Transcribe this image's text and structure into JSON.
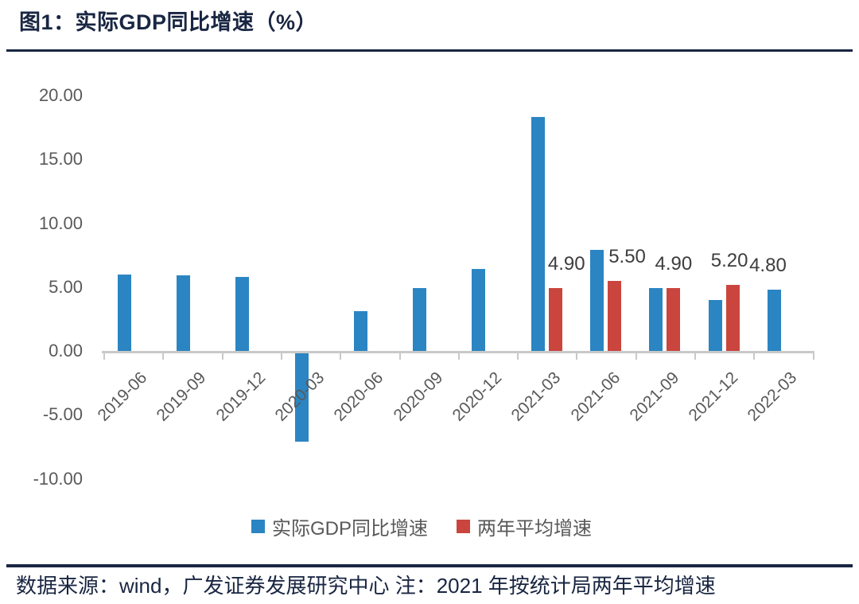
{
  "title": "图1：实际GDP同比增速（%）",
  "chart_data": {
    "type": "bar",
    "categories": [
      "2019-06",
      "2019-09",
      "2019-12",
      "2020-03",
      "2020-06",
      "2020-09",
      "2020-12",
      "2021-03",
      "2021-06",
      "2021-09",
      "2021-12",
      "2022-03"
    ],
    "series": [
      {
        "id": "gdp",
        "name": "实际GDP同比增速",
        "color": "#2b85c2",
        "values": [
          6.0,
          5.9,
          5.8,
          -6.9,
          3.1,
          4.9,
          6.4,
          18.3,
          7.9,
          4.9,
          4.0,
          4.8
        ]
      },
      {
        "id": "avg",
        "name": "两年平均增速",
        "color": "#ca453e",
        "values": [
          null,
          null,
          null,
          null,
          null,
          null,
          null,
          4.9,
          5.5,
          4.9,
          5.2,
          null
        ]
      }
    ],
    "data_labels": [
      {
        "category": "2021-03",
        "series": 1,
        "text": "4.90"
      },
      {
        "category": "2021-06",
        "series": 1,
        "text": "5.50"
      },
      {
        "category": "2021-09",
        "series": 1,
        "text": "4.90"
      },
      {
        "category": "2021-12",
        "series": 1,
        "text": "5.20"
      },
      {
        "category": "2022-03",
        "series": 0,
        "text": "4.80"
      }
    ],
    "y_axis": {
      "ticks": [
        "20.00",
        "15.00",
        "10.00",
        "5.00",
        "0.00",
        "-5.00",
        "-10.00"
      ],
      "min": -10,
      "max": 20
    },
    "xlabel": "",
    "ylabel": "",
    "grid": false,
    "legend_position": "bottom"
  },
  "legend": {
    "items": [
      {
        "label": "实际GDP同比增速",
        "color": "#2b85c2"
      },
      {
        "label": "两年平均增速",
        "color": "#ca453e"
      }
    ]
  },
  "footer": {
    "source_note": "数据来源：wind，广发证券发展研究中心  注：2021 年按统计局两年平均增速"
  },
  "colors": {
    "navy": "#192642",
    "axis_text": "#595959",
    "axis_line": "#c9c9c9",
    "value_label": "#3d3d3d"
  }
}
